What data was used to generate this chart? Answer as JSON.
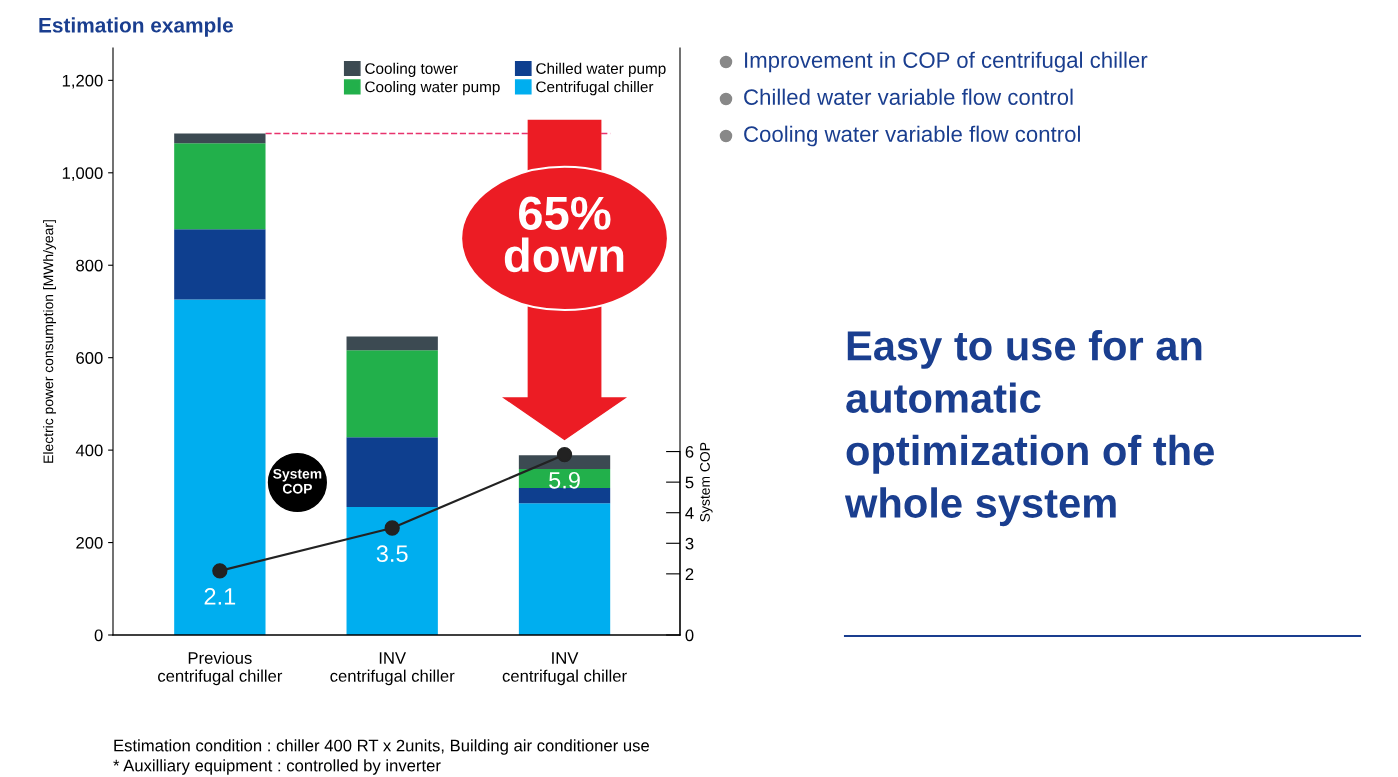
{
  "chart_data": {
    "type": "bar",
    "stacked": true,
    "title": "Estimation example",
    "categories": [
      "Previous\ncentrifugal chiller",
      "INV\ncentrifugal chiller",
      "INV\ncentrifugal chiller"
    ],
    "series": [
      {
        "name": "Centrifugal chiller",
        "color": "#00aeef",
        "values": [
          726,
          277,
          285
        ]
      },
      {
        "name": "Chilled water pump",
        "color": "#0e3f8f",
        "values": [
          152,
          151,
          33
        ]
      },
      {
        "name": "Cooling water pump",
        "color": "#22b04b",
        "values": [
          186,
          188,
          41
        ]
      },
      {
        "name": "Cooling tower",
        "color": "#3c4a52",
        "values": [
          21,
          30,
          30
        ]
      },
      {
        "name": null,
        "type": "line",
        "axis": "y2",
        "color": "#222222",
        "marker": "circle",
        "data_labels": true,
        "values": [
          2.1,
          3.5,
          5.9
        ]
      }
    ],
    "ylabel": "Electric power consumption [MWh/year]",
    "y2label": "System COP",
    "ylim": [
      0,
      1270
    ],
    "yticks": [
      {
        "value": 0,
        "label": "0"
      },
      {
        "value": 200,
        "label": "200"
      },
      {
        "value": 400,
        "label": "400"
      },
      {
        "value": 600,
        "label": "600"
      },
      {
        "value": 800,
        "label": "800"
      },
      {
        "value": 1000,
        "label": "1,000"
      },
      {
        "value": 1200,
        "label": "1,200"
      }
    ],
    "y2lim": [
      0,
      19.2
    ],
    "y2ticks": [
      0,
      2,
      3,
      4,
      5,
      6
    ],
    "ref_lines": [
      {
        "axis": "y",
        "value": 1085,
        "color": "#e8336d",
        "line_style": "dashed"
      }
    ],
    "legend": "top right",
    "grid": false,
    "annotations": [
      "65% down",
      "System COP",
      "Improvement in COP of centrifugal chiller",
      "Chilled water variable flow control",
      "Cooling water variable flow control",
      "Easy to use for an\nautomatic\noptimization of the\nwhole system",
      "Estimation condition : chiller 400 RT x 2units, Building air conditioner use",
      "* Auxilliary equipment : controlled by inverter"
    ]
  }
}
